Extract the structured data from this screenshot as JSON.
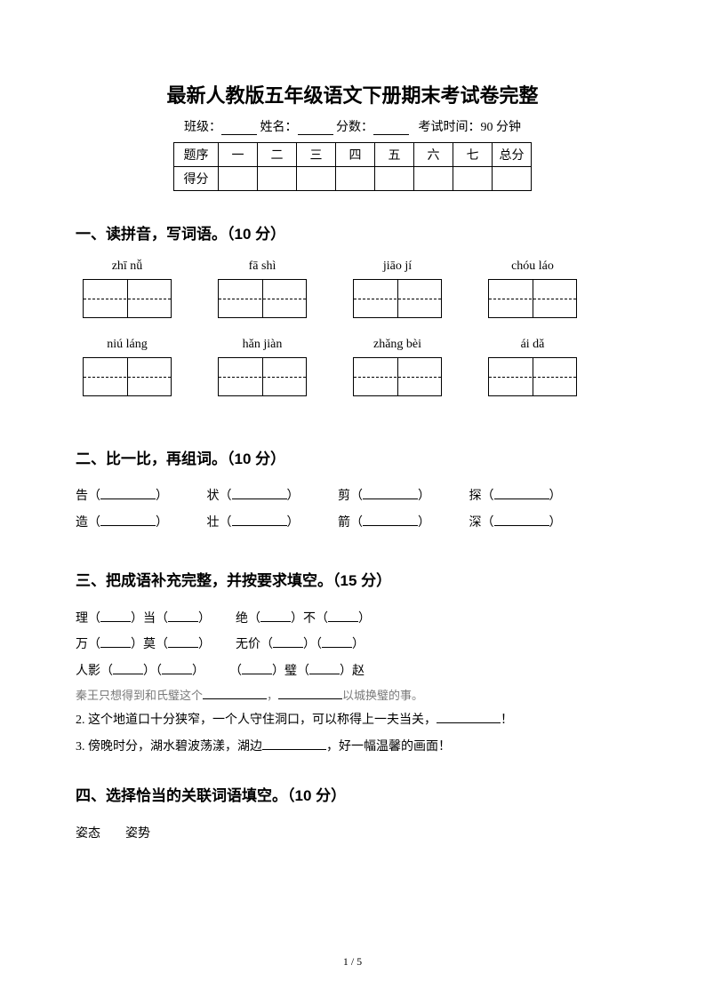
{
  "title": "最新人教版五年级语文下册期末考试卷完整",
  "header": {
    "class_label": "班级：",
    "name_label": "姓名：",
    "score_label": "分数：",
    "time_label": "考试时间：90 分钟"
  },
  "score_table": {
    "row1_label": "题序",
    "cols": [
      "一",
      "二",
      "三",
      "四",
      "五",
      "六",
      "七",
      "总分"
    ],
    "row2_label": "得分"
  },
  "q1": {
    "heading": "一、读拼音，写词语。（10 分）",
    "row1": [
      "zhī  nǚ",
      "fā  shì",
      "jiāo  jí",
      "chóu  láo"
    ],
    "row2": [
      "niú  láng",
      "hǎn  jiàn",
      "zhǎng bèi",
      "ái  dǎ"
    ]
  },
  "q2": {
    "heading": "二、比一比，再组词。（10 分）",
    "row1": [
      "告",
      "状",
      "剪",
      "探"
    ],
    "row2": [
      "造",
      "壮",
      "箭",
      "深"
    ]
  },
  "q3": {
    "heading": "三、把成语补充完整，并按要求填空。（15 分）",
    "line1a_pre": "理（",
    "line1a_mid": "）当（",
    "line1a_end": "）",
    "line1b_pre": "绝（",
    "line1b_mid": "）不（",
    "line1b_end": "）",
    "line2a_pre": "万（",
    "line2a_mid": "）莫（",
    "line2a_end": "）",
    "line2b_pre": "无价（",
    "line2b_mid": "）（",
    "line2b_end": "）",
    "line3a_pre": "人影（",
    "line3a_mid": "）（",
    "line3a_end": "）",
    "line3b_pre": "（",
    "line3b_mid": "）璧（",
    "line3b_end": "）赵",
    "note_pre": "秦王只想得到和氏璧这个",
    "note_mid": "，",
    "note_end": "以城换璧的事。",
    "line4_pre": "2. 这个地道口十分狭窄，一个人守住洞口，可以称得上一夫当关，",
    "line4_end": "！",
    "line5_pre": "3. 傍晚时分，湖水碧波荡漾，湖边",
    "line5_end": "，好一幅温馨的画面！"
  },
  "q4": {
    "heading": "四、选择恰当的关联词语填空。（10 分）",
    "words": "姿态  姿势"
  },
  "page_number": "1 / 5"
}
